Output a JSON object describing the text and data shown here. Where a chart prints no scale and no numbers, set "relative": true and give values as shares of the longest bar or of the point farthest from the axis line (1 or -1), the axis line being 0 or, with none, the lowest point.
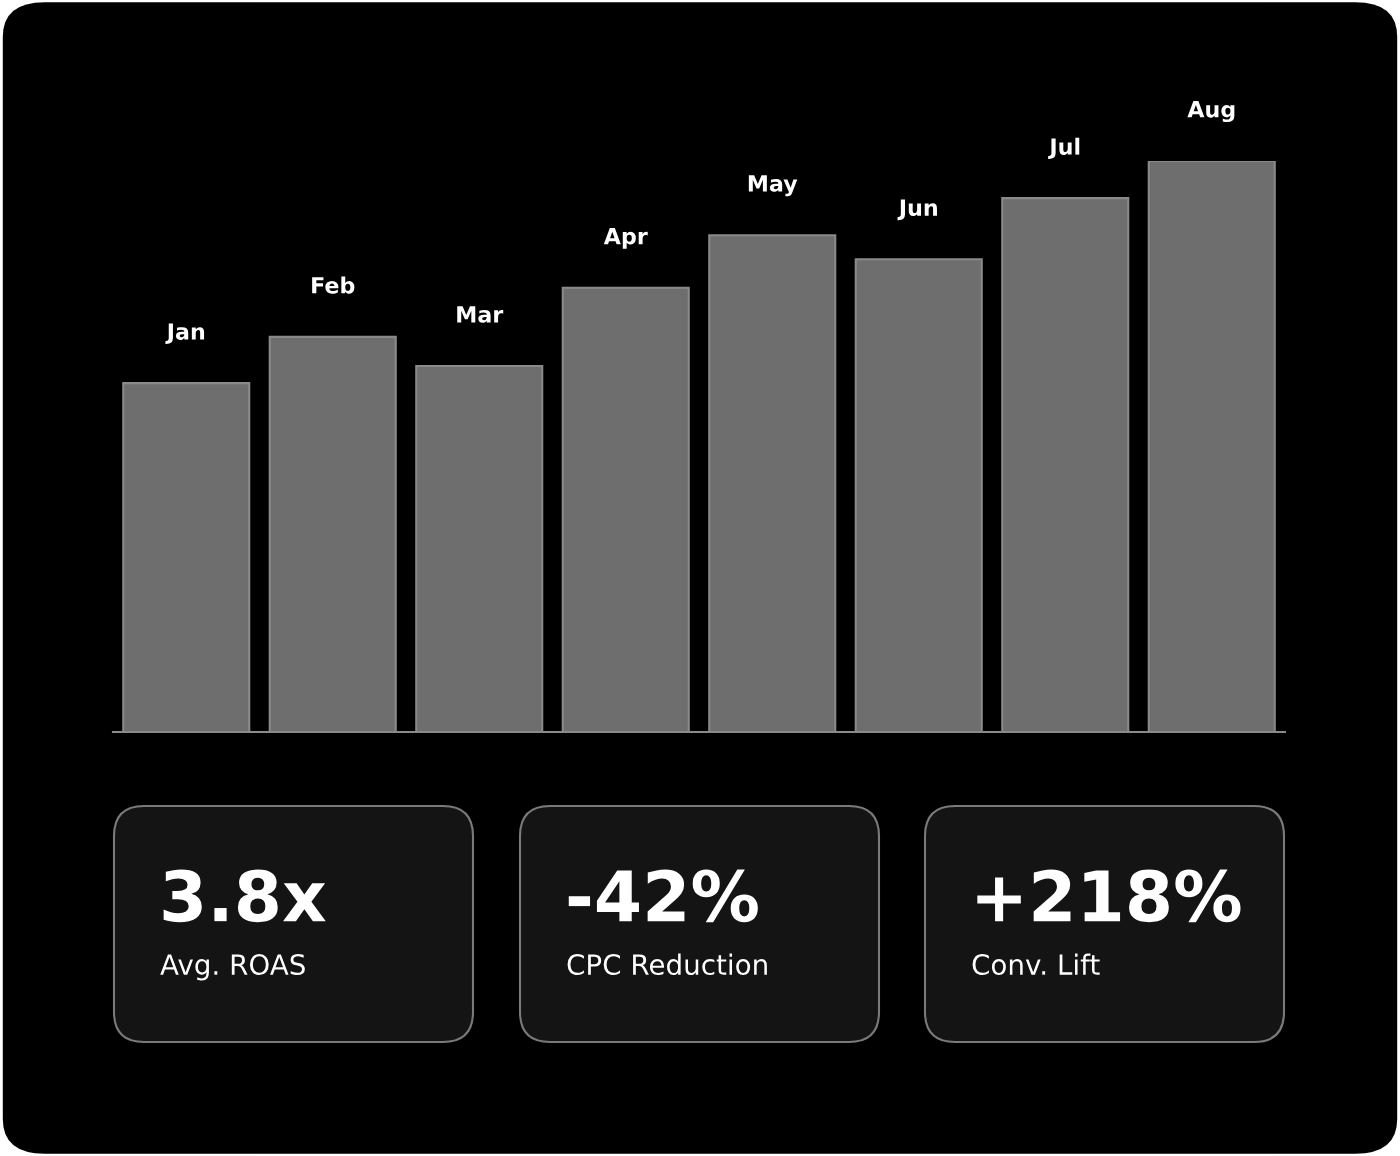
{
  "chart_data": [
    {
      "type": "bar",
      "relative": true,
      "categories": [
        "Jan",
        "Feb",
        "Mar",
        "Apr",
        "May",
        "Jun",
        "Jul",
        "Aug"
      ],
      "values": [
        0.611,
        0.692,
        0.641,
        0.778,
        0.87,
        0.828,
        0.935,
        1.0
      ],
      "color": "#6e6e6e"
    },
    {
      "type": "other",
      "annotations": [
        "3.8x",
        "Avg. ROAS",
        "-42%",
        "CPC Reduction",
        "+218%",
        "Conv. Lift"
      ]
    }
  ]
}
